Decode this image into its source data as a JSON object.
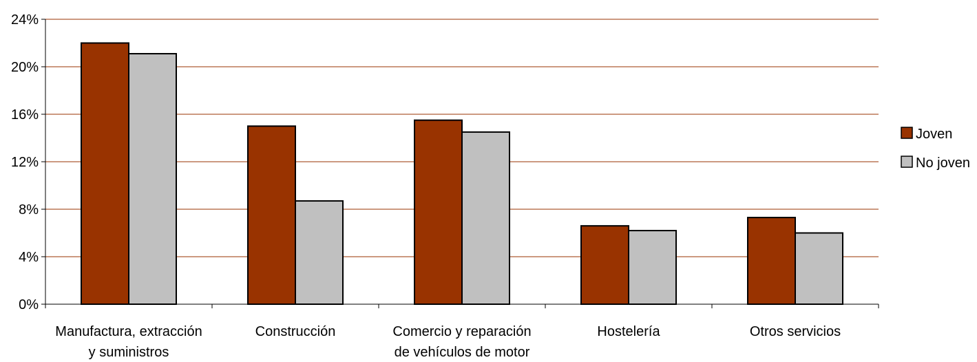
{
  "chart_data": {
    "type": "bar",
    "title": "",
    "xlabel": "",
    "ylabel": "",
    "categories": [
      [
        "Manufactura, extracción",
        "y suministros"
      ],
      [
        "Construcción"
      ],
      [
        "Comercio y reparación",
        "de vehículos de motor"
      ],
      [
        "Hostelería"
      ],
      [
        "Otros servicios"
      ]
    ],
    "series": [
      {
        "name": "Joven",
        "color": "#993300",
        "values": [
          22.0,
          15.0,
          15.5,
          6.6,
          7.3
        ]
      },
      {
        "name": "No joven",
        "color": "#C0C0C0",
        "values": [
          21.1,
          8.7,
          14.5,
          6.2,
          6.0
        ]
      }
    ],
    "ylim": [
      0,
      24
    ],
    "yticks": [
      0,
      4,
      8,
      12,
      16,
      20,
      24
    ],
    "ytick_labels": [
      "0%",
      "4%",
      "8%",
      "12%",
      "16%",
      "20%",
      "24%"
    ],
    "gridlines": true,
    "gridline_color": "#993300",
    "bar_edge_color": "#000000",
    "legend_position": "right"
  }
}
